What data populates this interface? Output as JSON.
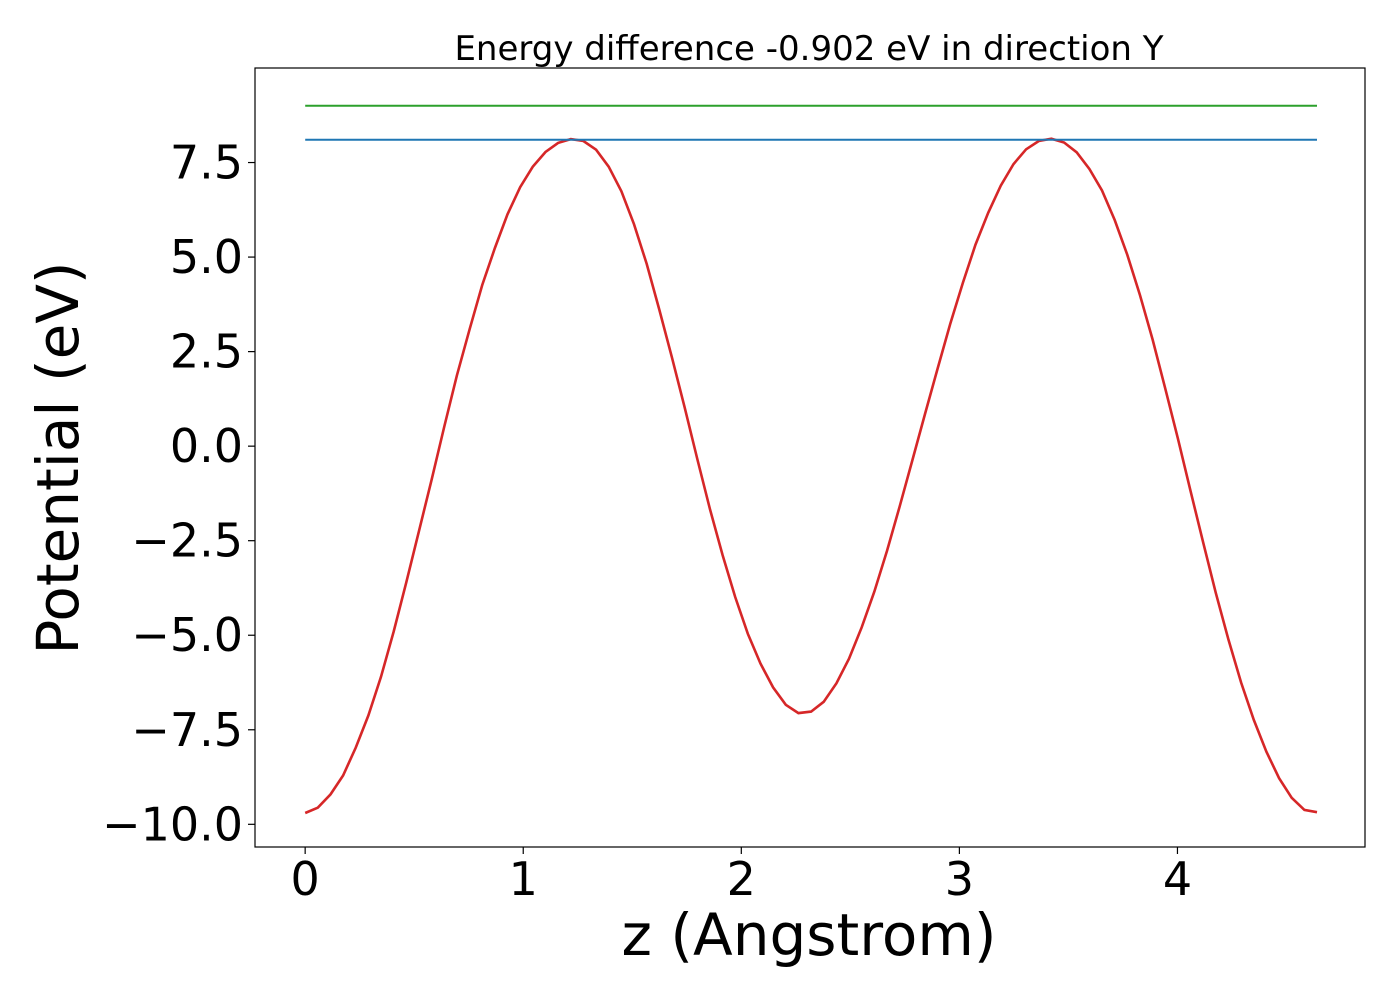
{
  "chart_data": {
    "type": "line",
    "title": "Energy difference -0.902 eV in direction Y",
    "xlabel": "z (Angstrom)",
    "ylabel": "Potential (eV)",
    "xlim": [
      -0.23,
      4.86
    ],
    "ylim": [
      -10.6,
      10.0
    ],
    "grid": false,
    "x_ticks": [
      0,
      1,
      2,
      3,
      4
    ],
    "x_tick_labels": [
      "0",
      "1",
      "2",
      "3",
      "4"
    ],
    "y_ticks": [
      7.5,
      5.0,
      2.5,
      0.0,
      -2.5,
      -5.0,
      -7.5,
      -10.0
    ],
    "y_tick_labels": [
      "7.5",
      "5.0",
      "2.5",
      "0.0",
      "−2.5",
      "−5.0",
      "−7.5",
      "−10.0"
    ],
    "series": [
      {
        "color": "#d62728",
        "x": [
          0.0,
          0.058,
          0.116,
          0.174,
          0.232,
          0.29,
          0.348,
          0.406,
          0.464,
          0.522,
          0.58,
          0.638,
          0.696,
          0.754,
          0.812,
          0.87,
          0.928,
          0.986,
          1.044,
          1.102,
          1.16,
          1.218,
          1.276,
          1.334,
          1.392,
          1.45,
          1.508,
          1.566,
          1.624,
          1.682,
          1.74,
          1.798,
          1.856,
          1.914,
          1.972,
          2.03,
          2.088,
          2.146,
          2.204,
          2.262,
          2.32,
          2.378,
          2.436,
          2.494,
          2.552,
          2.61,
          2.668,
          2.726,
          2.784,
          2.842,
          2.9,
          2.958,
          3.016,
          3.074,
          3.132,
          3.19,
          3.248,
          3.306,
          3.364,
          3.422,
          3.48,
          3.538,
          3.596,
          3.654,
          3.712,
          3.77,
          3.828,
          3.886,
          3.944,
          4.002,
          4.06,
          4.118,
          4.176,
          4.234,
          4.292,
          4.35,
          4.408,
          4.466,
          4.524,
          4.582,
          4.64
        ],
        "y": [
          -9.7,
          -9.56,
          -9.21,
          -8.71,
          -7.97,
          -7.12,
          -6.1,
          -4.9,
          -3.6,
          -2.24,
          -0.89,
          0.52,
          1.87,
          3.09,
          4.26,
          5.24,
          6.13,
          6.85,
          7.39,
          7.78,
          8.02,
          8.12,
          8.07,
          7.84,
          7.39,
          6.74,
          5.87,
          4.82,
          3.61,
          2.34,
          1.03,
          -0.34,
          -1.66,
          -2.88,
          -3.99,
          -4.96,
          -5.75,
          -6.38,
          -6.84,
          -7.06,
          -7.02,
          -6.76,
          -6.27,
          -5.62,
          -4.79,
          -3.85,
          -2.77,
          -1.6,
          -0.38,
          0.84,
          2.05,
          3.23,
          4.32,
          5.33,
          6.17,
          6.89,
          7.46,
          7.85,
          8.07,
          8.13,
          8.03,
          7.77,
          7.33,
          6.76,
          5.98,
          5.06,
          4.0,
          2.82,
          1.53,
          0.2,
          -1.18,
          -2.55,
          -3.88,
          -5.12,
          -6.25,
          -7.24,
          -8.08,
          -8.78,
          -9.3,
          -9.62,
          -9.68
        ]
      },
      {
        "color": "#1f77b4",
        "x": [
          0.0,
          4.64
        ],
        "y": [
          8.1,
          8.1
        ]
      },
      {
        "color": "#2ca02c",
        "x": [
          0.0,
          4.64
        ],
        "y": [
          9.0,
          9.0
        ]
      }
    ]
  }
}
